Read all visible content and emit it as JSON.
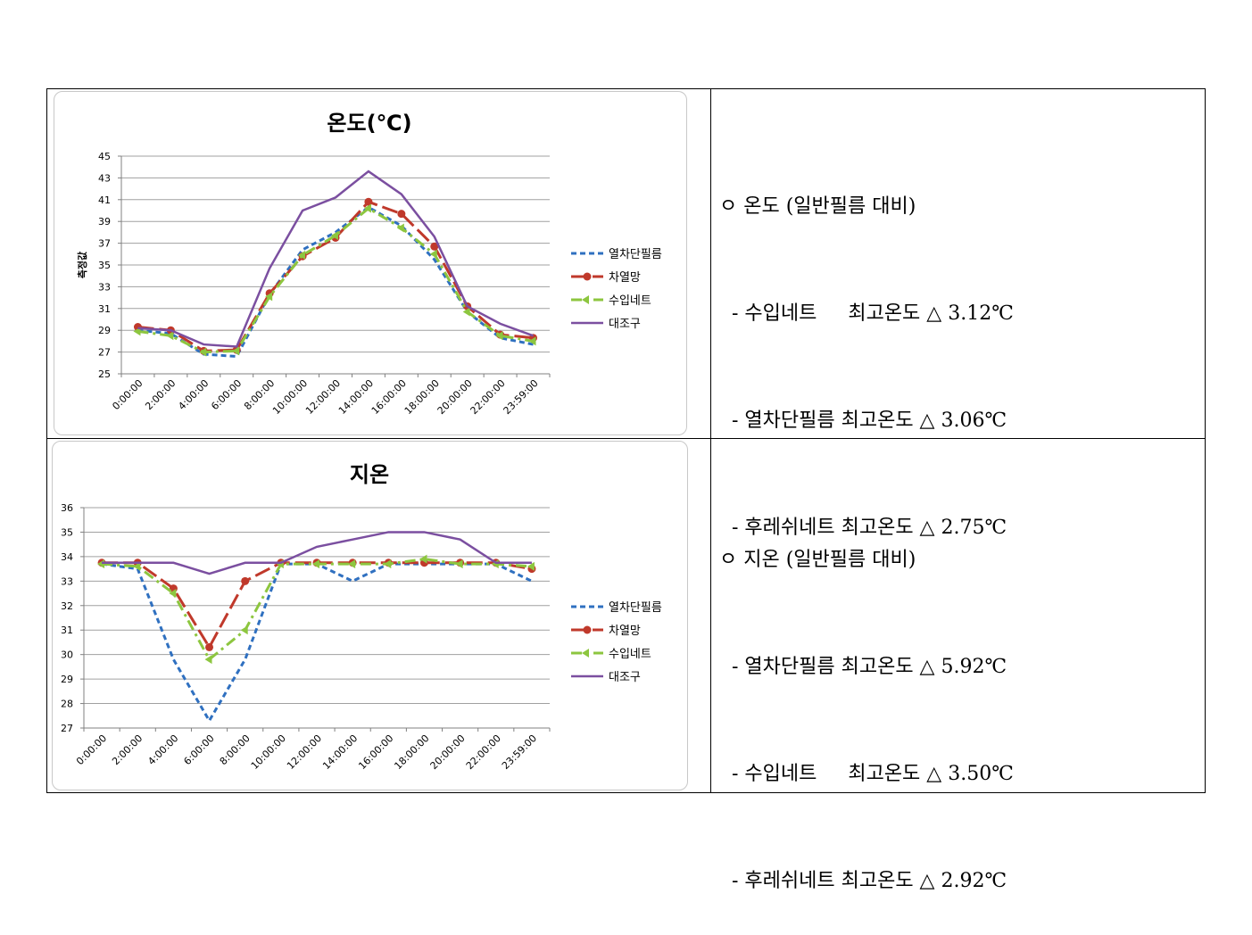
{
  "colors": {
    "series1": "#2f70c0",
    "series2": "#c0392b",
    "series3": "#8dc63f",
    "series4": "#7b4fa0",
    "grid": "#a0a0a0"
  },
  "x_tick_labels": [
    "0:00:00",
    "2:00:00",
    "4:00:00",
    "6:00:00",
    "8:00:00",
    "10:00:00",
    "12:00:00",
    "14:00:00",
    "16:00:00",
    "18:00:00",
    "20:00:00",
    "22:00:00",
    "23:59:00"
  ],
  "chart_data": [
    {
      "type": "line",
      "title": "온도(℃)",
      "ylabel": "측정값",
      "ylim": [
        25,
        45
      ],
      "yticks": [
        25,
        27,
        29,
        31,
        33,
        35,
        37,
        39,
        41,
        43,
        45
      ],
      "grid": true,
      "legend_position": "right",
      "x": [
        "0:00:00",
        "2:00:00",
        "4:00:00",
        "6:00:00",
        "8:00:00",
        "10:00:00",
        "12:00:00",
        "14:00:00",
        "16:00:00",
        "18:00:00",
        "20:00:00",
        "22:00:00",
        "23:59:00"
      ],
      "series": [
        {
          "name": "열차단필름",
          "style": "dashed",
          "values": [
            29.0,
            28.7,
            26.8,
            26.6,
            32.3,
            36.4,
            38.0,
            40.3,
            38.6,
            35.5,
            30.7,
            28.3,
            27.7
          ]
        },
        {
          "name": "차열망",
          "style": "longdash-marker",
          "values": [
            29.3,
            29.0,
            27.1,
            27.2,
            32.4,
            35.8,
            37.5,
            40.8,
            39.7,
            36.7,
            31.2,
            28.6,
            28.3
          ]
        },
        {
          "name": "수입네트",
          "style": "dashdot-arrow",
          "values": [
            28.9,
            28.5,
            27.0,
            27.1,
            32.1,
            35.9,
            37.7,
            40.2,
            38.4,
            36.0,
            30.7,
            28.5,
            28.0
          ]
        },
        {
          "name": "대조구",
          "style": "solid",
          "values": [
            29.2,
            29.0,
            27.7,
            27.5,
            34.7,
            40.0,
            41.2,
            43.6,
            41.5,
            37.6,
            31.2,
            29.6,
            28.5
          ]
        }
      ]
    },
    {
      "type": "line",
      "title": "지온",
      "ylim": [
        27,
        36
      ],
      "yticks": [
        27,
        28,
        29,
        30,
        31,
        32,
        33,
        34,
        35,
        36
      ],
      "grid": true,
      "legend_position": "right",
      "x": [
        "0:00:00",
        "2:00:00",
        "4:00:00",
        "6:00:00",
        "8:00:00",
        "10:00:00",
        "12:00:00",
        "14:00:00",
        "16:00:00",
        "18:00:00",
        "20:00:00",
        "22:00:00",
        "23:59:00"
      ],
      "series": [
        {
          "name": "열차단필름",
          "style": "dashed",
          "values": [
            33.7,
            33.5,
            29.8,
            27.3,
            29.8,
            33.7,
            33.7,
            33.0,
            33.7,
            33.7,
            33.7,
            33.7,
            33.0
          ]
        },
        {
          "name": "차열망",
          "style": "longdash-marker",
          "values": [
            33.75,
            33.75,
            32.7,
            30.3,
            33.0,
            33.75,
            33.75,
            33.75,
            33.75,
            33.75,
            33.75,
            33.75,
            33.5
          ]
        },
        {
          "name": "수입네트",
          "style": "dashdot-arrow",
          "values": [
            33.7,
            33.6,
            32.5,
            29.8,
            31.0,
            33.7,
            33.7,
            33.7,
            33.7,
            33.9,
            33.7,
            33.7,
            33.6
          ]
        },
        {
          "name": "대조구",
          "style": "solid",
          "values": [
            33.75,
            33.75,
            33.75,
            33.3,
            33.75,
            33.75,
            34.4,
            34.7,
            35.0,
            35.0,
            34.7,
            33.75,
            33.75
          ]
        }
      ]
    }
  ],
  "notes": [
    {
      "heading": "ㅇ 온도 (일반필름 대비)",
      "lines": [
        "  - 수입네트     최고온도 △ 3.12℃",
        "  - 열차단필름 최고온도 △ 3.06℃",
        "  - 후레쉬네트 최고온도 △ 2.75℃"
      ]
    },
    {
      "heading": "ㅇ 지온 (일반필름 대비)",
      "lines": [
        "  - 열차단필름 최고온도 △ 5.92℃",
        "  - 수입네트     최고온도 △ 3.50℃",
        "  - 후레쉬네트 최고온도 △ 2.92℃"
      ]
    }
  ]
}
